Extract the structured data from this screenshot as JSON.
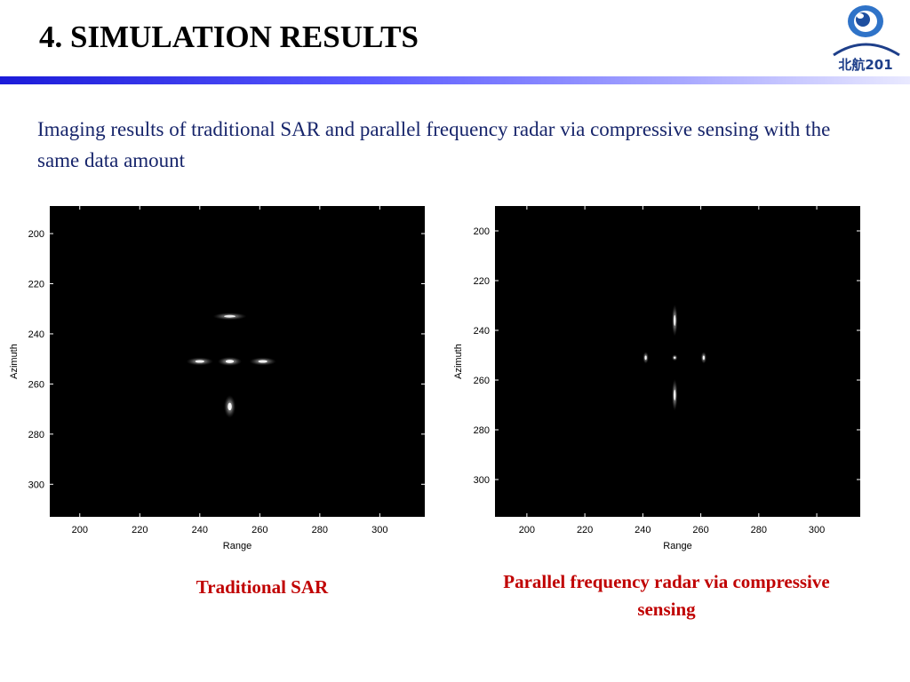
{
  "slide": {
    "title": "4. SIMULATION RESULTS",
    "subtitle": "Imaging results of traditional SAR and parallel frequency radar via compressive sensing with the same data amount",
    "logo_text": "北航201",
    "captions": {
      "left": "Traditional SAR",
      "right": "Parallel frequency radar via compressive sensing"
    }
  },
  "chart_data": [
    {
      "type": "heatmap",
      "xlabel": "Range",
      "ylabel": "Azimuth",
      "xlim": [
        190,
        315
      ],
      "ylim": [
        189,
        313
      ],
      "xticks": [
        200,
        220,
        240,
        260,
        280,
        300
      ],
      "yticks": [
        200,
        220,
        240,
        260,
        280,
        300
      ],
      "background": "#000000",
      "points": [
        {
          "x": 250,
          "y": 233,
          "rx": 3.5,
          "ry": 0.9,
          "intensity": 0.85
        },
        {
          "x": 240,
          "y": 251,
          "rx": 2.8,
          "ry": 1.0,
          "intensity": 0.9
        },
        {
          "x": 250,
          "y": 251,
          "rx": 2.5,
          "ry": 1.1,
          "intensity": 1.0
        },
        {
          "x": 261,
          "y": 251,
          "rx": 2.8,
          "ry": 1.0,
          "intensity": 0.9
        },
        {
          "x": 250,
          "y": 269,
          "rx": 1.2,
          "ry": 2.8,
          "intensity": 0.95
        }
      ]
    },
    {
      "type": "heatmap",
      "xlabel": "Range",
      "ylabel": "Azimuth",
      "xlim": [
        189,
        315
      ],
      "ylim": [
        190,
        315
      ],
      "xticks": [
        200,
        220,
        240,
        260,
        280,
        300
      ],
      "yticks": [
        200,
        220,
        240,
        260,
        280,
        300
      ],
      "background": "#000000",
      "points": [
        {
          "x": 251,
          "y": 236,
          "rx": 0.6,
          "ry": 4.0,
          "intensity": 0.95
        },
        {
          "x": 241,
          "y": 251,
          "rx": 0.6,
          "ry": 1.5,
          "intensity": 0.95
        },
        {
          "x": 251,
          "y": 251,
          "rx": 0.6,
          "ry": 0.8,
          "intensity": 1.0
        },
        {
          "x": 261,
          "y": 251,
          "rx": 0.6,
          "ry": 1.5,
          "intensity": 0.95
        },
        {
          "x": 251,
          "y": 266,
          "rx": 0.6,
          "ry": 4.0,
          "intensity": 0.95
        }
      ]
    }
  ]
}
